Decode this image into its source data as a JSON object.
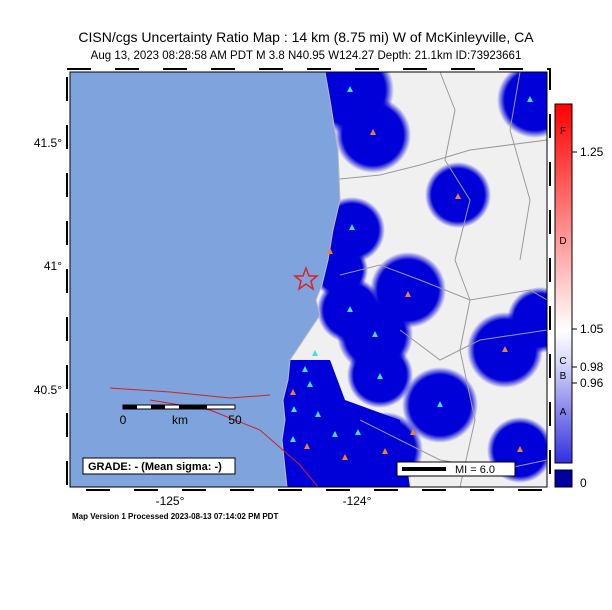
{
  "header": {
    "title": "CISN/cgs Uncertainty Ratio Map : 14  km (8.75 mi) W of McKinleyville, CA",
    "subtitle": "Aug 13, 2023 08:28:58 AM PDT   M 3.8   N40.95 W124.27   Depth: 21.1km   ID:73923661"
  },
  "map": {
    "lat_labels": [
      "41.5°",
      "41°",
      "40.5°"
    ],
    "lon_labels": [
      "-125°",
      "-124°"
    ],
    "scale": {
      "unit": "km",
      "labels": [
        "0",
        "50"
      ]
    },
    "grade": "GRADE: - (Mean sigma: -)",
    "mi_legend": "MI = 6.0"
  },
  "colorbar": {
    "letters": [
      "F",
      "D",
      "C",
      "B",
      "A"
    ],
    "ticks": [
      "1.25",
      "1.05",
      "0.98",
      "0.96"
    ],
    "zero": "0"
  },
  "footer": "Map Version 1 Processed 2023-08-13 07:14:02 PM PDT"
}
